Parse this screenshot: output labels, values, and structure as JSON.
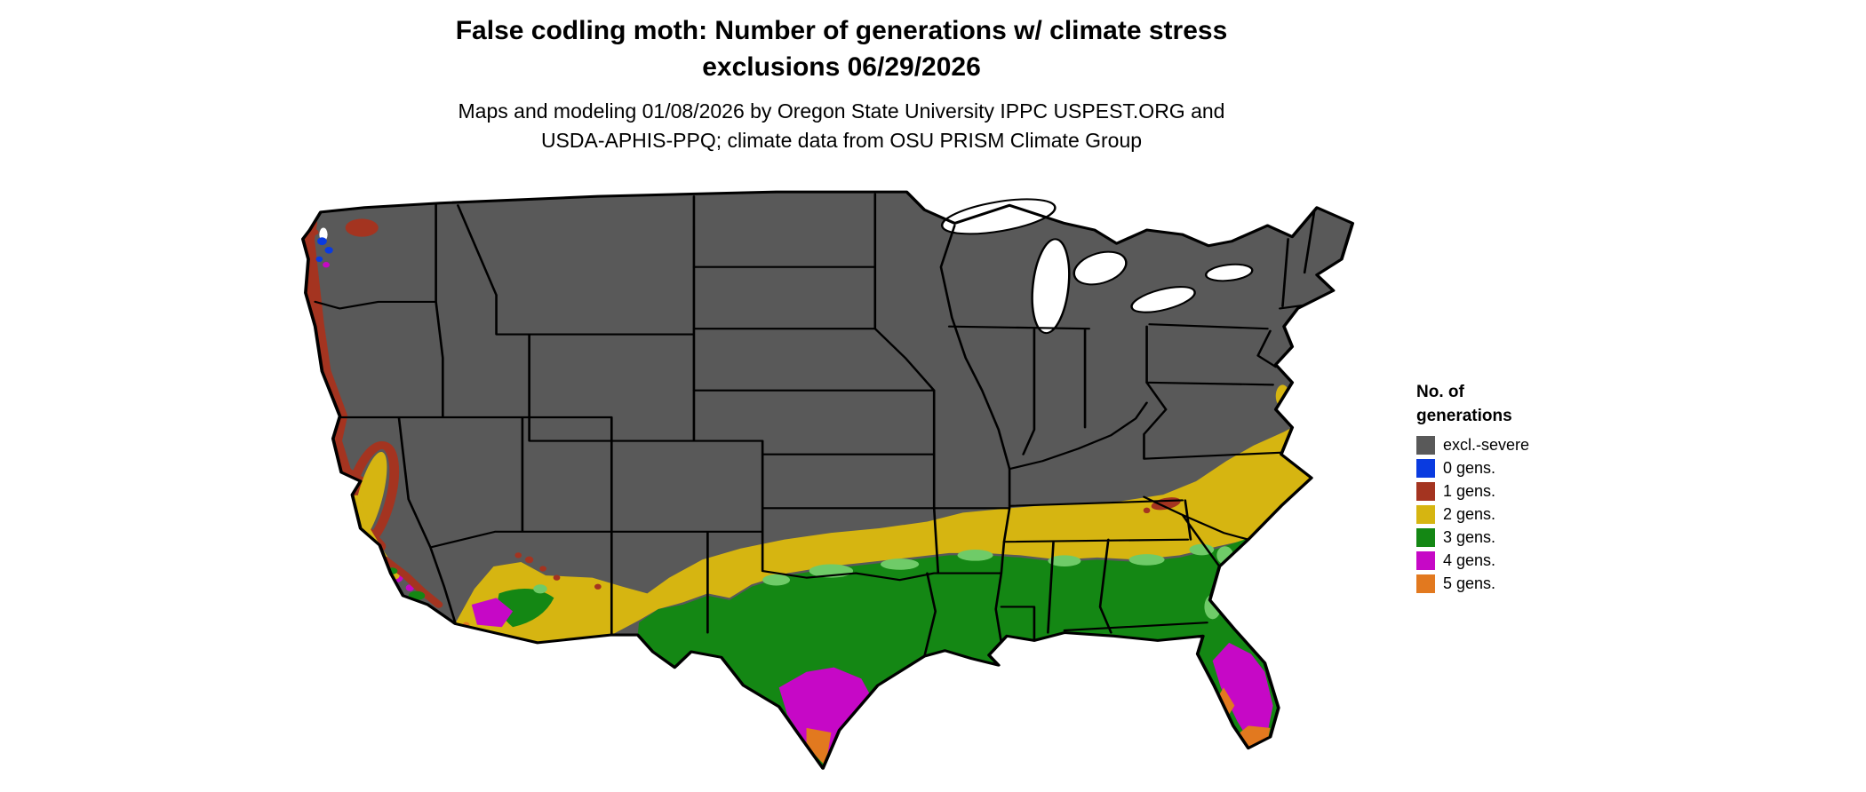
{
  "header": {
    "title_line1": "False codling moth: Number of generations w/ climate stress",
    "title_line2": "exclusions 06/29/2026",
    "subtitle_line1": "Maps and modeling 01/08/2026 by Oregon State University IPPC USPEST.ORG and",
    "subtitle_line2": "USDA-APHIS-PPQ; climate data from OSU PRISM Climate Group"
  },
  "legend": {
    "title_line1": "No. of",
    "title_line2": "generations",
    "items": [
      {
        "label": "excl.-severe",
        "color": "#595959"
      },
      {
        "label": "0 gens.",
        "color": "#0A3BE0"
      },
      {
        "label": "1 gens.",
        "color": "#A43420"
      },
      {
        "label": "2 gens.",
        "color": "#D6B511"
      },
      {
        "label": "3 gens.",
        "color": "#148714"
      },
      {
        "label": "4 gens.",
        "color": "#C608C6"
      },
      {
        "label": "5 gens.",
        "color": "#E2791F"
      }
    ]
  },
  "map": {
    "region_label": "Contiguous United States",
    "light_green_color": "#6FCB68",
    "state_border_color": "#000000",
    "water_color": "#FFFFFF",
    "background_color": "#FFFFFF"
  }
}
